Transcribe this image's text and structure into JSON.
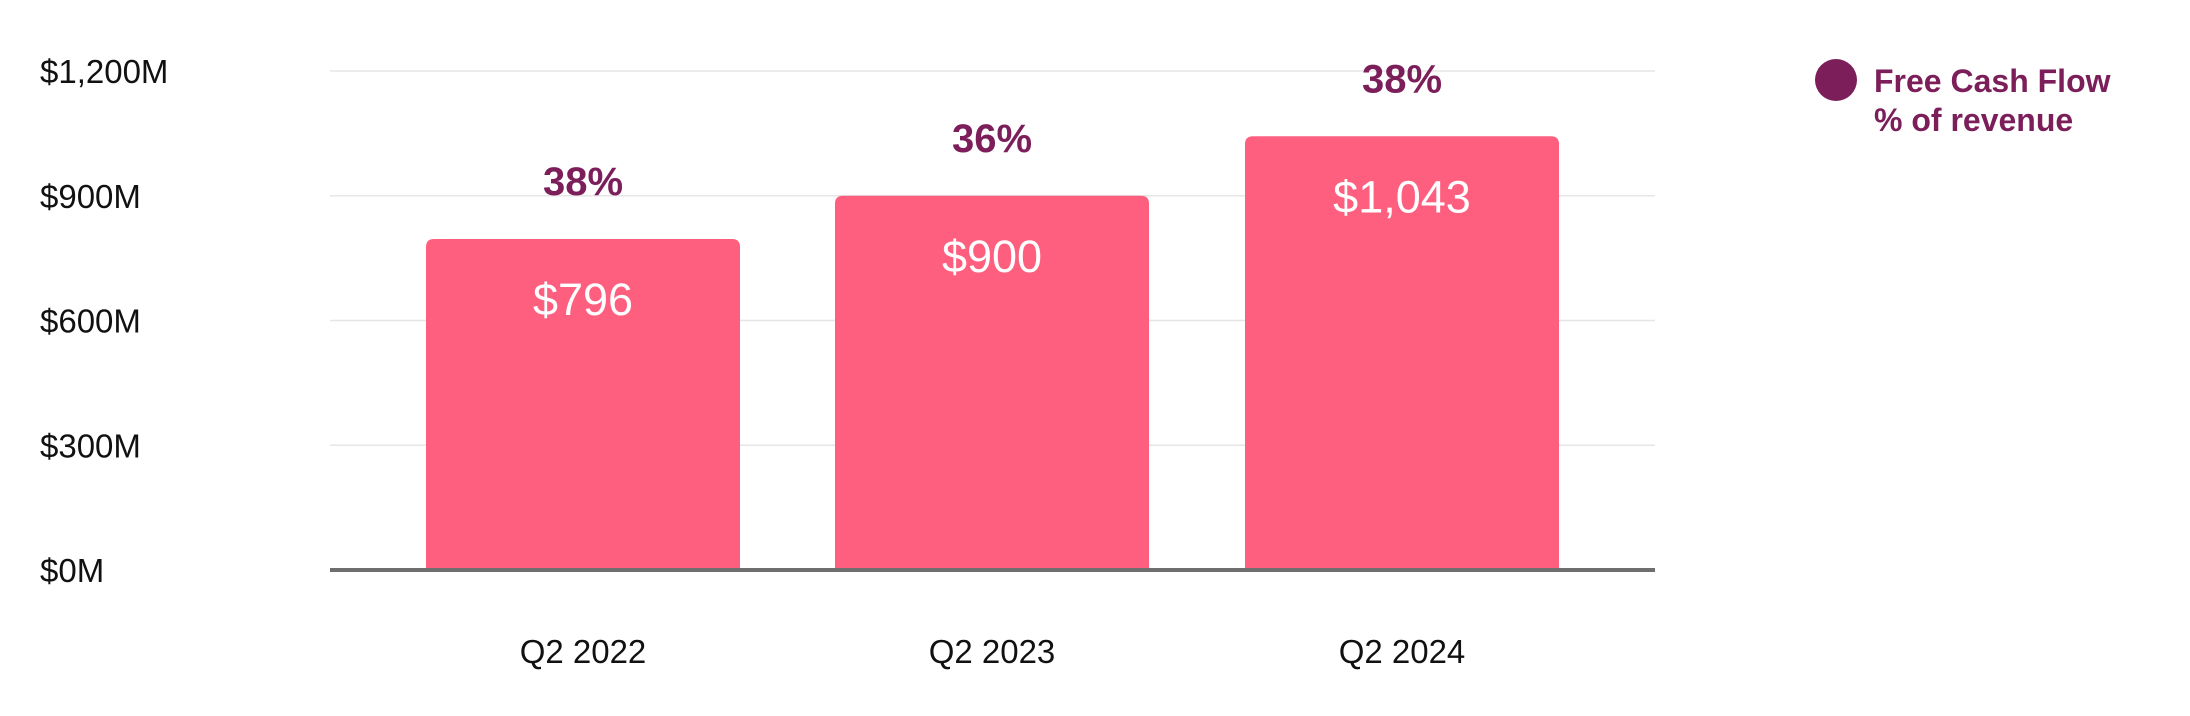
{
  "chart_data": {
    "type": "bar",
    "categories": [
      "Q2 2022",
      "Q2 2023",
      "Q2 2024"
    ],
    "series": [
      {
        "name": "Free Cash Flow",
        "values": [
          796,
          900,
          1043
        ],
        "value_labels": [
          "$796",
          "$900",
          "$1,043"
        ]
      }
    ],
    "secondary": {
      "name": "% of revenue",
      "values": [
        38,
        36,
        38
      ],
      "labels": [
        "38%",
        "36%",
        "38%"
      ]
    },
    "ylim": [
      0,
      1200
    ],
    "yticks": [
      0,
      300,
      600,
      900,
      1200
    ],
    "ytick_labels": [
      "$0M",
      "$300M",
      "$600M",
      "$900M",
      "$1,200M"
    ],
    "title": "",
    "xlabel": "",
    "ylabel": "",
    "grid": true,
    "legend_position": "top-right",
    "legend": [
      "Free Cash Flow",
      "% of revenue"
    ],
    "colors": {
      "bar": "#FF5F7E",
      "accent": "#7B1E5A",
      "grid": "#E6E6E6",
      "baseline": "#6E6E6E"
    }
  }
}
